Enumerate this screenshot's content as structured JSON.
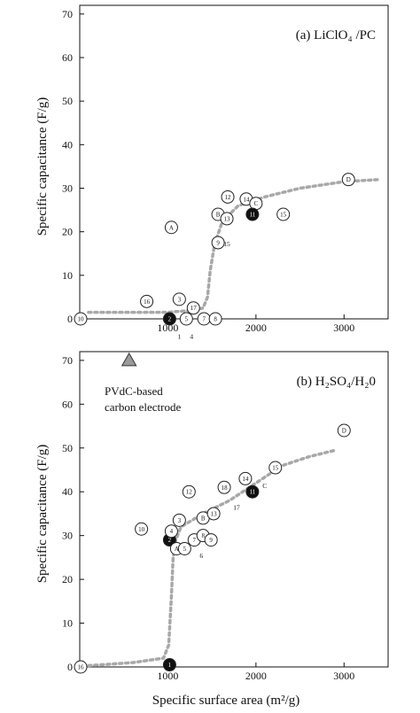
{
  "figure": {
    "x_axis_title": "Specific surface area (m²/g)"
  },
  "chart_data": [
    {
      "type": "scatter",
      "title": "(a) LiClO₄ /PC",
      "ylabel": "Specific capacitance (F/g)",
      "xlabel": "",
      "xlim": [
        0,
        3500
      ],
      "ylim": [
        0,
        72
      ],
      "x_ticks": [
        1000,
        2000,
        3000
      ],
      "x_tick_labels": [
        "1000",
        "2000",
        "3000"
      ],
      "y_ticks": [
        0,
        10,
        20,
        30,
        40,
        50,
        60,
        70
      ],
      "y_tick_labels": [
        "0",
        "10",
        "20",
        "30",
        "40",
        "50",
        "60",
        "70"
      ],
      "grid": false,
      "points": [
        {
          "label": "10",
          "x": 10,
          "y": 0,
          "style": "open"
        },
        {
          "label": "16",
          "x": 760,
          "y": 4,
          "style": "open"
        },
        {
          "label": "2",
          "x": 1020,
          "y": 0,
          "style": "filled"
        },
        {
          "label": "3",
          "x": 1130,
          "y": 4.5,
          "style": "open"
        },
        {
          "label": "17",
          "x": 1290,
          "y": 2.5,
          "style": "open"
        },
        {
          "label": "5",
          "x": 1210,
          "y": 0,
          "style": "open"
        },
        {
          "label": "7",
          "x": 1410,
          "y": 0,
          "style": "open"
        },
        {
          "label": "8",
          "x": 1540,
          "y": 0,
          "style": "open"
        },
        {
          "label": "A",
          "x": 1040,
          "y": 21,
          "style": "open"
        },
        {
          "label": "9",
          "x": 1570,
          "y": 17.5,
          "style": "open"
        },
        {
          "label": "B",
          "x": 1570,
          "y": 24,
          "style": "open"
        },
        {
          "label": "13",
          "x": 1670,
          "y": 23,
          "style": "open"
        },
        {
          "label": "12",
          "x": 1680,
          "y": 28,
          "style": "open"
        },
        {
          "label": "14",
          "x": 1890,
          "y": 27.5,
          "style": "open"
        },
        {
          "label": "C",
          "x": 2000,
          "y": 26.5,
          "style": "open"
        },
        {
          "label": "11",
          "x": 1960,
          "y": 24,
          "style": "filled"
        },
        {
          "label": "15",
          "x": 2310,
          "y": 24,
          "style": "open"
        },
        {
          "label": "D",
          "x": 3050,
          "y": 32,
          "style": "open"
        }
      ],
      "outside_labels": [
        {
          "text": "1",
          "x": 1130,
          "y": -4
        },
        {
          "text": "4",
          "x": 1270,
          "y": -4
        },
        {
          "text": "15",
          "x": 1670,
          "y": 17.3
        }
      ],
      "trend_line": {
        "x": [
          100,
          1000,
          1300,
          1400,
          1450,
          1480,
          1530,
          1620,
          1800,
          2100,
          2500,
          3000,
          3400
        ],
        "y": [
          1.5,
          1.5,
          2,
          2.5,
          5,
          11,
          17,
          22.5,
          26,
          28,
          30,
          31.5,
          32
        ]
      },
      "colors": {
        "marker_edge": "#222222",
        "filled_marker": "#111111",
        "trend_line": "#a8a8a8"
      }
    },
    {
      "type": "scatter",
      "title": "(b) H₂SO₄/H₂0",
      "ylabel": "Specific capacitance (F/g)",
      "xlabel": "Specific surface area (m²/g)",
      "xlim": [
        0,
        3500
      ],
      "ylim": [
        0,
        72
      ],
      "x_ticks": [
        1000,
        2000,
        3000
      ],
      "x_tick_labels": [
        "1000",
        "2000",
        "3000"
      ],
      "y_ticks": [
        0,
        10,
        20,
        30,
        40,
        50,
        60,
        70
      ],
      "y_tick_labels": [
        "0",
        "10",
        "20",
        "30",
        "40",
        "50",
        "60",
        "70"
      ],
      "grid": false,
      "annotation": [
        "PVdC-based",
        "carbon electrode"
      ],
      "triangle_point": {
        "x": 560,
        "y": 70,
        "color": "#9a9a9a"
      },
      "points": [
        {
          "label": "16",
          "x": 10,
          "y": 0,
          "style": "open"
        },
        {
          "label": "1",
          "x": 1020,
          "y": 0.5,
          "style": "filled"
        },
        {
          "label": "10",
          "x": 700,
          "y": 31.5,
          "style": "open"
        },
        {
          "label": "2",
          "x": 1020,
          "y": 29,
          "style": "filled"
        },
        {
          "label": "3",
          "x": 1130,
          "y": 33.5,
          "style": "open"
        },
        {
          "label": "4",
          "x": 1040,
          "y": 31,
          "style": "open"
        },
        {
          "label": "A",
          "x": 1100,
          "y": 27,
          "style": "open"
        },
        {
          "label": "5",
          "x": 1190,
          "y": 27,
          "style": "open"
        },
        {
          "label": "7",
          "x": 1300,
          "y": 29,
          "style": "open"
        },
        {
          "label": "8",
          "x": 1400,
          "y": 30,
          "style": "open"
        },
        {
          "label": "9",
          "x": 1490,
          "y": 29,
          "style": "open"
        },
        {
          "label": "12",
          "x": 1240,
          "y": 40,
          "style": "open"
        },
        {
          "label": "B",
          "x": 1400,
          "y": 34,
          "style": "open"
        },
        {
          "label": "13",
          "x": 1520,
          "y": 35,
          "style": "open"
        },
        {
          "label": "18",
          "x": 1640,
          "y": 41,
          "style": "open"
        },
        {
          "label": "14",
          "x": 1880,
          "y": 43,
          "style": "open"
        },
        {
          "label": "11",
          "x": 1960,
          "y": 40,
          "style": "filled"
        },
        {
          "label": "15",
          "x": 2220,
          "y": 45.5,
          "style": "open"
        },
        {
          "label": "D",
          "x": 3000,
          "y": 54,
          "style": "open"
        }
      ],
      "outside_labels": [
        {
          "text": "6",
          "x": 1380,
          "y": 25.5
        },
        {
          "text": "17",
          "x": 1780,
          "y": 36.5
        },
        {
          "text": "C",
          "x": 2100,
          "y": 41.5
        }
      ],
      "trend_line": {
        "x": [
          100,
          600,
          950,
          1010,
          1040,
          1060,
          1090,
          1150,
          1400,
          1700,
          2000,
          2300,
          2600,
          2900
        ],
        "y": [
          0.3,
          1,
          2,
          5,
          16,
          25,
          29,
          32,
          35,
          38,
          42,
          46,
          48,
          49.5
        ]
      },
      "colors": {
        "marker_edge": "#222222",
        "filled_marker": "#111111",
        "trend_line": "#a8a8a8",
        "triangle": "#9a9a9a"
      }
    }
  ]
}
